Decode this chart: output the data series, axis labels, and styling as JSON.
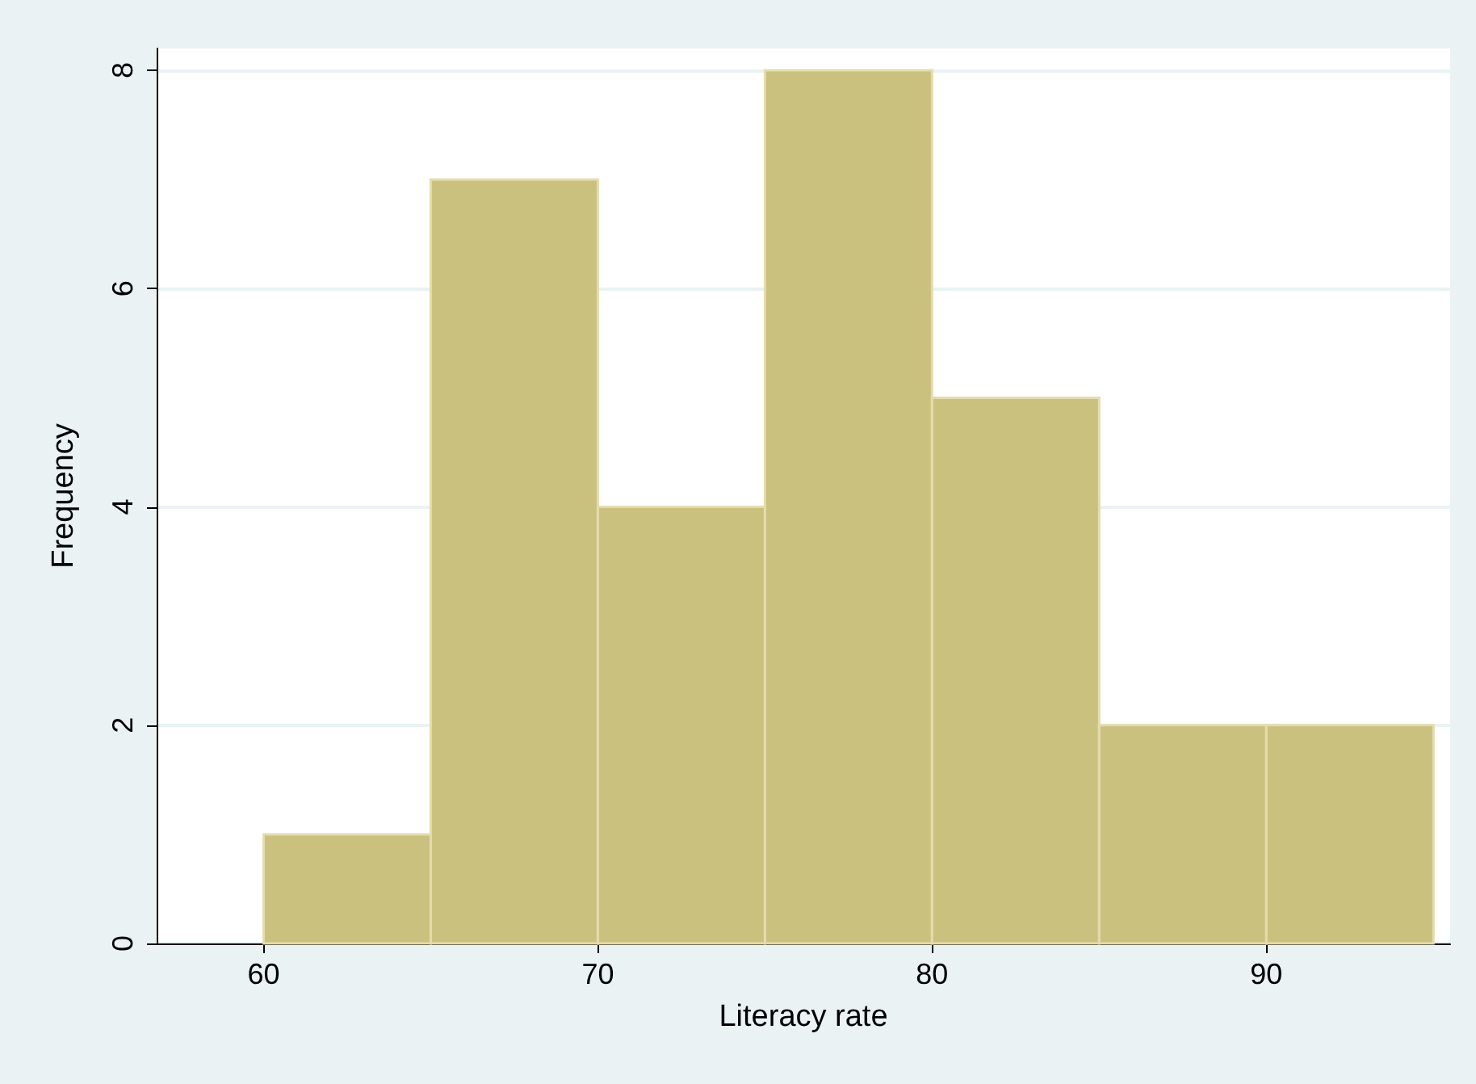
{
  "chart_data": {
    "type": "histogram",
    "xlabel": "Literacy rate",
    "ylabel": "Frequency",
    "bins": [
      60,
      65,
      70,
      75,
      80,
      85,
      90,
      95
    ],
    "values": [
      1,
      7,
      4,
      8,
      5,
      2,
      2
    ],
    "color": "#cbc17f",
    "xlim": [
      56.8,
      95.5
    ],
    "xticks": [
      60,
      70,
      80,
      90
    ],
    "ylim": [
      0,
      8.2
    ],
    "yticks": [
      0,
      2,
      4,
      6,
      8
    ],
    "grid": "y"
  }
}
